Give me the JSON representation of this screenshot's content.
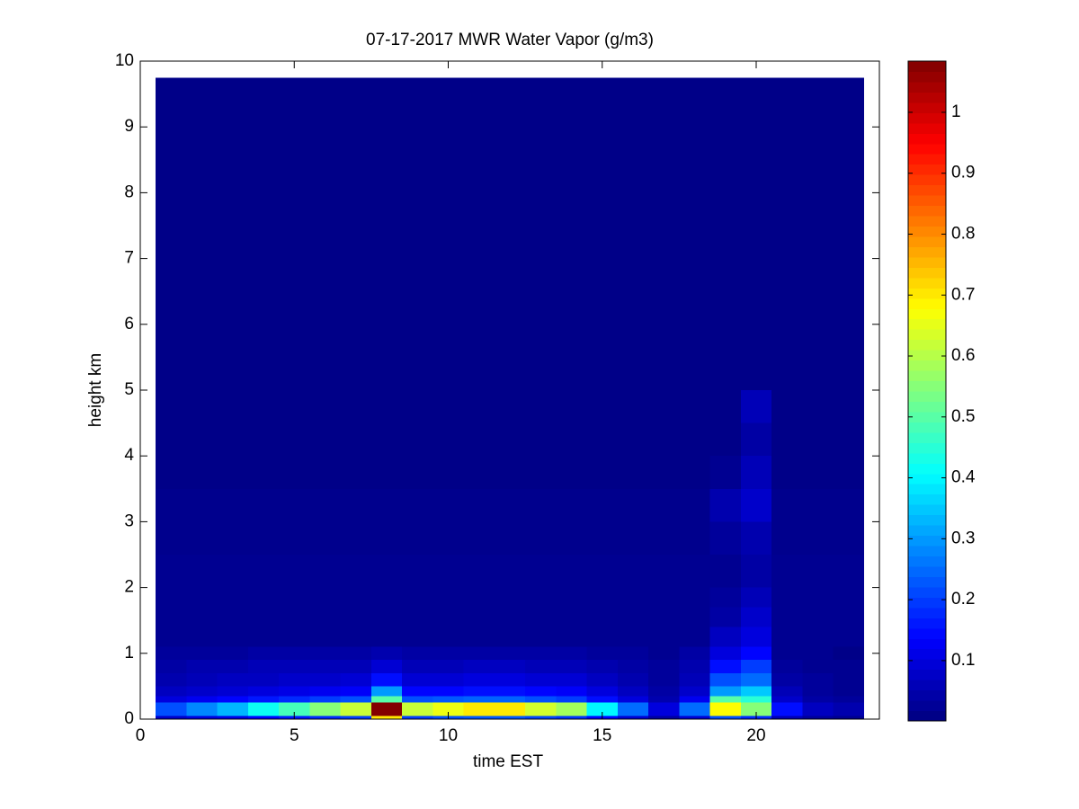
{
  "chart_data": {
    "type": "heatmap",
    "title": "07-17-2017 MWR Water Vapor (g/m3)",
    "x_label": "time EST",
    "y_label": "height km",
    "colormap": "jet",
    "xlim": [
      0,
      24
    ],
    "xticks": [
      0,
      5,
      10,
      15,
      20
    ],
    "ylim": [
      0,
      10
    ],
    "yticks": [
      0,
      1,
      2,
      3,
      4,
      5,
      6,
      7,
      8,
      9,
      10
    ],
    "clim": [
      0.001,
      1.084
    ],
    "cticks": [
      0.1,
      0.2,
      0.3,
      0.4,
      0.5,
      0.6,
      0.7,
      0.8,
      0.9,
      1
    ],
    "x_edges": [
      0.5,
      1.5,
      2.5,
      3.5,
      4.5,
      5.5,
      6.5,
      7.5,
      8.5,
      9.5,
      10.5,
      11.5,
      12.5,
      13.5,
      14.5,
      15.5,
      16.5,
      17.5,
      18.5,
      19.5,
      20.5,
      21.5,
      22.5,
      23.5
    ],
    "y_edges": [
      0,
      0.05,
      0.25,
      0.35,
      0.5,
      0.7,
      0.9,
      1.1,
      1.4,
      1.7,
      2.0,
      2.5,
      3.0,
      3.5,
      4.0,
      4.5,
      5.0,
      9.75
    ],
    "z": [
      [
        0.08,
        0.1,
        0.11,
        0.14,
        0.16,
        0.18,
        0.2,
        0.7,
        0.2,
        0.22,
        0.23,
        0.23,
        0.21,
        0.19,
        0.14,
        0.09,
        0.04,
        0.09,
        0.22,
        0.18,
        0.06,
        0.03,
        0.02
      ],
      [
        0.22,
        0.28,
        0.33,
        0.42,
        0.48,
        0.55,
        0.62,
        1.08,
        0.62,
        0.66,
        0.7,
        0.7,
        0.63,
        0.58,
        0.4,
        0.25,
        0.1,
        0.25,
        0.68,
        0.55,
        0.15,
        0.07,
        0.05
      ],
      [
        0.1,
        0.12,
        0.14,
        0.16,
        0.18,
        0.2,
        0.22,
        0.5,
        0.22,
        0.23,
        0.24,
        0.24,
        0.22,
        0.2,
        0.15,
        0.1,
        0.05,
        0.12,
        0.5,
        0.45,
        0.08,
        0.04,
        0.03
      ],
      [
        0.07,
        0.08,
        0.09,
        0.1,
        0.11,
        0.12,
        0.13,
        0.3,
        0.14,
        0.14,
        0.15,
        0.15,
        0.14,
        0.13,
        0.1,
        0.07,
        0.04,
        0.08,
        0.3,
        0.35,
        0.06,
        0.03,
        0.02
      ],
      [
        0.05,
        0.06,
        0.07,
        0.07,
        0.08,
        0.08,
        0.09,
        0.15,
        0.09,
        0.09,
        0.1,
        0.1,
        0.09,
        0.09,
        0.07,
        0.05,
        0.03,
        0.06,
        0.22,
        0.25,
        0.04,
        0.03,
        0.02
      ],
      [
        0.04,
        0.05,
        0.05,
        0.06,
        0.06,
        0.06,
        0.06,
        0.09,
        0.06,
        0.06,
        0.07,
        0.07,
        0.06,
        0.06,
        0.05,
        0.04,
        0.03,
        0.05,
        0.15,
        0.2,
        0.03,
        0.02,
        0.02
      ],
      [
        0.03,
        0.03,
        0.03,
        0.04,
        0.04,
        0.04,
        0.04,
        0.05,
        0.04,
        0.04,
        0.04,
        0.04,
        0.04,
        0.04,
        0.03,
        0.03,
        0.02,
        0.04,
        0.1,
        0.14,
        0.02,
        0.02,
        0.01
      ],
      [
        0.02,
        0.02,
        0.02,
        0.02,
        0.02,
        0.02,
        0.02,
        0.02,
        0.02,
        0.02,
        0.02,
        0.02,
        0.02,
        0.02,
        0.02,
        0.02,
        0.02,
        0.02,
        0.07,
        0.1,
        0.02,
        0.02,
        0.02
      ],
      [
        0.02,
        0.02,
        0.02,
        0.02,
        0.02,
        0.02,
        0.02,
        0.02,
        0.02,
        0.02,
        0.02,
        0.02,
        0.02,
        0.02,
        0.02,
        0.02,
        0.02,
        0.02,
        0.04,
        0.08,
        0.02,
        0.02,
        0.02
      ],
      [
        0.02,
        0.02,
        0.02,
        0.02,
        0.02,
        0.02,
        0.02,
        0.02,
        0.02,
        0.02,
        0.02,
        0.02,
        0.02,
        0.02,
        0.02,
        0.02,
        0.02,
        0.02,
        0.03,
        0.06,
        0.02,
        0.02,
        0.02
      ],
      [
        0.02,
        0.02,
        0.02,
        0.02,
        0.02,
        0.02,
        0.02,
        0.02,
        0.02,
        0.02,
        0.02,
        0.02,
        0.02,
        0.02,
        0.02,
        0.02,
        0.02,
        0.02,
        0.02,
        0.04,
        0.02,
        0.02,
        0.02
      ],
      [
        0.015,
        0.015,
        0.015,
        0.015,
        0.015,
        0.015,
        0.015,
        0.015,
        0.015,
        0.015,
        0.015,
        0.015,
        0.015,
        0.015,
        0.015,
        0.015,
        0.015,
        0.015,
        0.03,
        0.05,
        0.015,
        0.015,
        0.015
      ],
      [
        0.015,
        0.015,
        0.015,
        0.015,
        0.015,
        0.015,
        0.015,
        0.015,
        0.015,
        0.015,
        0.015,
        0.015,
        0.015,
        0.015,
        0.015,
        0.015,
        0.015,
        0.015,
        0.05,
        0.08,
        0.015,
        0.015,
        0.015
      ],
      [
        0.01,
        0.01,
        0.01,
        0.01,
        0.01,
        0.01,
        0.01,
        0.01,
        0.01,
        0.01,
        0.01,
        0.01,
        0.01,
        0.01,
        0.01,
        0.01,
        0.01,
        0.01,
        0.02,
        0.06,
        0.01,
        0.01,
        0.01
      ],
      [
        0.01,
        0.01,
        0.01,
        0.01,
        0.01,
        0.01,
        0.01,
        0.01,
        0.01,
        0.01,
        0.01,
        0.01,
        0.01,
        0.01,
        0.01,
        0.01,
        0.01,
        0.01,
        0.01,
        0.04,
        0.01,
        0.01,
        0.01
      ],
      [
        0.01,
        0.01,
        0.01,
        0.01,
        0.01,
        0.01,
        0.01,
        0.01,
        0.01,
        0.01,
        0.01,
        0.01,
        0.01,
        0.01,
        0.01,
        0.01,
        0.01,
        0.01,
        0.01,
        0.06,
        0.01,
        0.01,
        0.01
      ],
      [
        0.01,
        0.01,
        0.01,
        0.01,
        0.01,
        0.01,
        0.01,
        0.01,
        0.01,
        0.01,
        0.01,
        0.01,
        0.01,
        0.01,
        0.01,
        0.01,
        0.01,
        0.01,
        0.01,
        0.01,
        0.01,
        0.01,
        0.01
      ]
    ]
  }
}
